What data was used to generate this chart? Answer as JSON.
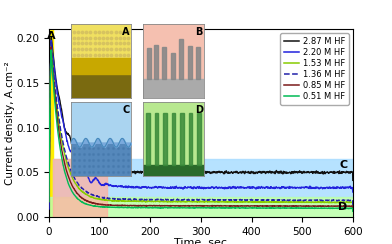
{
  "title": "",
  "xlabel": "Time, sec",
  "ylabel": "Current density, A.cm⁻²",
  "xlim": [
    0,
    600
  ],
  "ylim": [
    0,
    0.21
  ],
  "yticks": [
    0.0,
    0.05,
    0.1,
    0.15,
    0.2
  ],
  "xticks": [
    0,
    100,
    200,
    300,
    400,
    500,
    600
  ],
  "legend_entries": [
    "2.87 M HF",
    "2.20 M HF",
    "1.53 M HF",
    "1.36 M HF",
    "0.85 M HF",
    "0.51 M HF"
  ],
  "line_colors": [
    "#111111",
    "#2222dd",
    "#88cc00",
    "#2222aa",
    "#7a1a1a",
    "#00bb55"
  ],
  "line_styles": [
    "-",
    "-",
    "-",
    "--",
    "-",
    "-"
  ],
  "line_widths": [
    1.0,
    1.0,
    1.0,
    1.0,
    1.0,
    1.0
  ],
  "region_A_color": "#ffee00",
  "region_B_color": "#ffb0a0",
  "region_C_color": "#aaddff",
  "region_D_color": "#bbffaa",
  "bg_color": "#ffffff",
  "inset_A_bg": "#f0e060",
  "inset_B_bg": "#f5c0b0",
  "inset_C_bg": "#aad4f0",
  "inset_D_bg": "#b8e890"
}
